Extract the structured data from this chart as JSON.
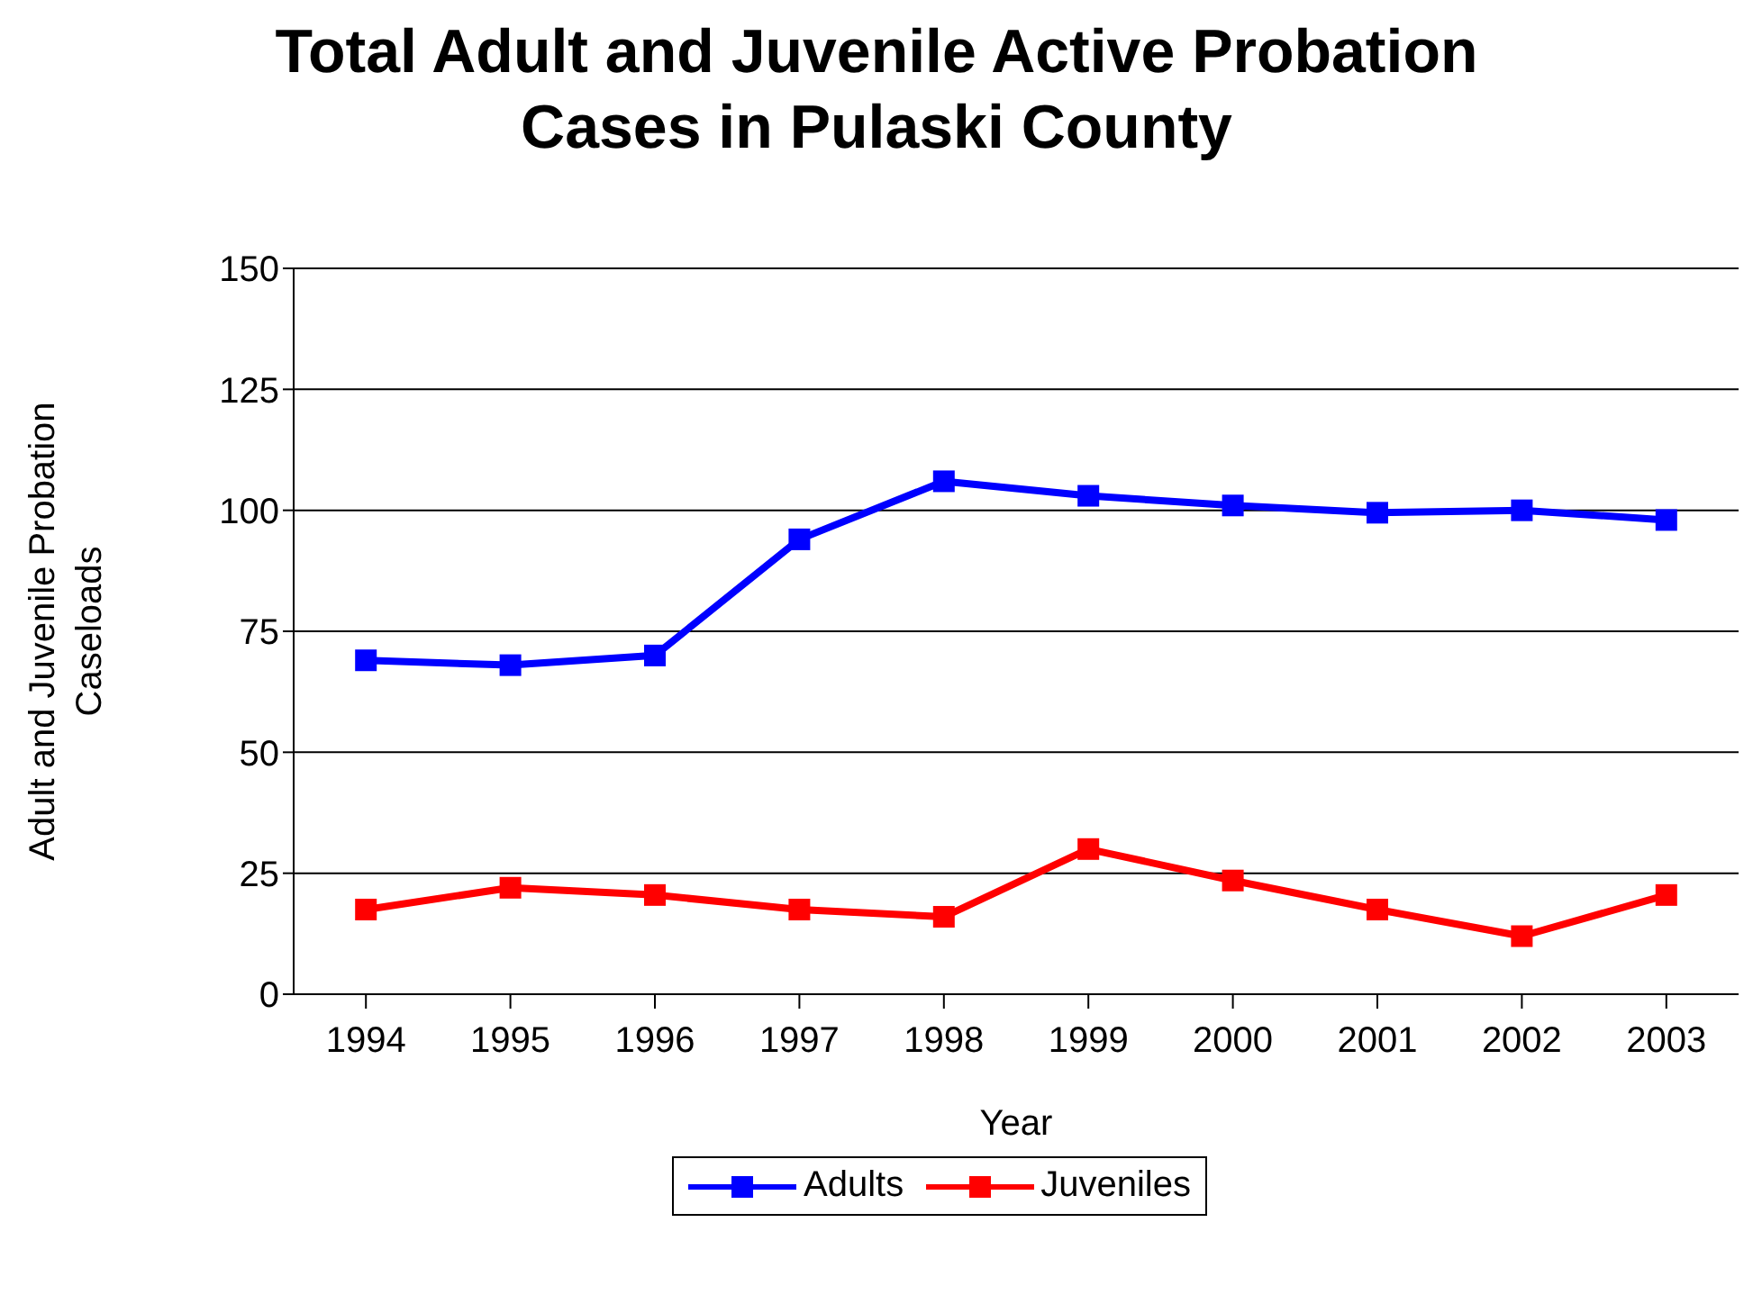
{
  "chart_data": {
    "type": "line",
    "title": "Total Adult and Juvenile Active Probation Cases in Pulaski County",
    "xlabel": "Year",
    "ylabel": "Adult and Juvenile Probation Caseloads",
    "categories": [
      "1994",
      "1995",
      "1996",
      "1997",
      "1998",
      "1999",
      "2000",
      "2001",
      "2002",
      "2003"
    ],
    "series": [
      {
        "name": "Adults",
        "color": "#0000ff",
        "values": [
          69,
          68,
          70,
          94,
          106,
          103,
          101,
          99.5,
          100,
          98
        ]
      },
      {
        "name": "Juveniles",
        "color": "#ff0000",
        "values": [
          17.5,
          22,
          20.5,
          17.5,
          16,
          30,
          23.5,
          17.5,
          12,
          20.5
        ]
      }
    ],
    "ylim": [
      0,
      150
    ],
    "yticks": [
      0,
      25,
      50,
      75,
      100,
      125,
      150
    ],
    "grid": "y",
    "legend": "bottom",
    "marker": "square",
    "line_style": "solid"
  }
}
